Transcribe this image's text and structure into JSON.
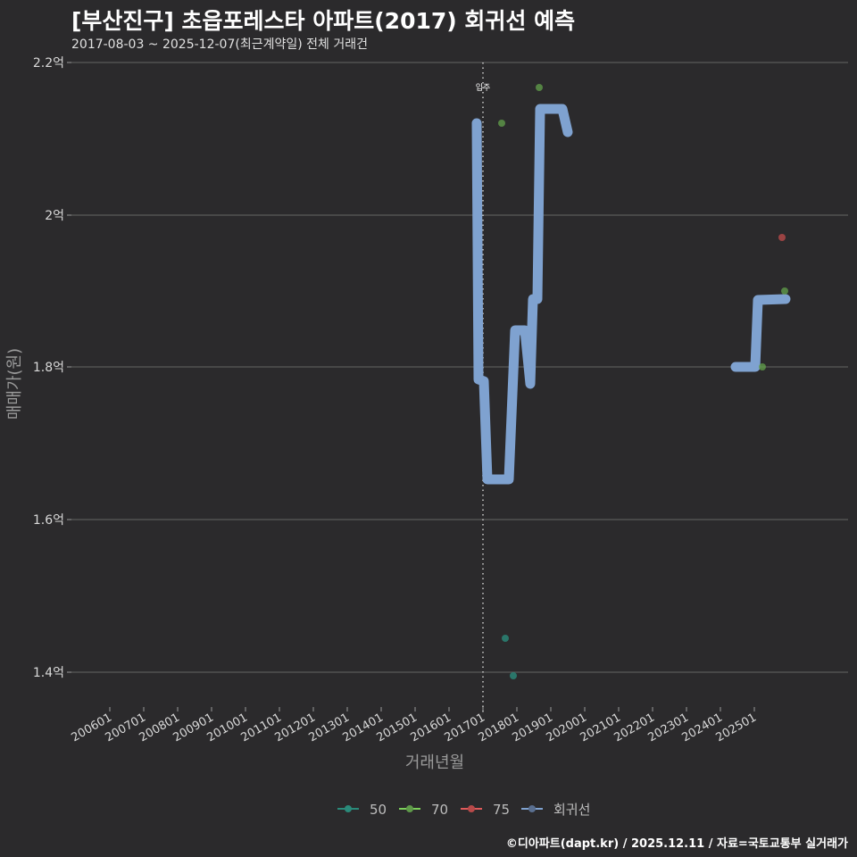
{
  "header": {
    "title": "[부산진구] 초읍포레스타 아파트(2017) 회귀선 예측",
    "subtitle": "2017-08-03 ~ 2025-12-07(최근계약일) 전체 거래건"
  },
  "caption": "©디아파트(dapt.kr) / 2025.12.11 / 자료=국토교통부 실거래가",
  "annotation": "입주",
  "chart_data": {
    "type": "line",
    "title": "[부산진구] 초읍포레스타 아파트(2017) 회귀선 예측",
    "subtitle": "2017-08-03 ~ 2025-12-07(최근계약일) 전체 거래건",
    "xlabel": "거래년월",
    "ylabel": "매매가(원)",
    "ylim": [
      1.36,
      2.2
    ],
    "y_ticks": [
      "1.4억",
      "1.6억",
      "1.8억",
      "2억",
      "2.2억"
    ],
    "x_ticks": [
      "200601",
      "200701",
      "200801",
      "200901",
      "201001",
      "201101",
      "201201",
      "201301",
      "201401",
      "201501",
      "201601",
      "201701",
      "201801",
      "201901",
      "202001",
      "202101",
      "202201",
      "202301",
      "202401",
      "202501"
    ],
    "grid": true,
    "legend_position": "bottom",
    "legend": [
      "50",
      "70",
      "75",
      "회귀선"
    ],
    "vline": {
      "x": "201701",
      "label": "입주"
    },
    "series": [
      {
        "name": "50",
        "color": "#2a8a7a",
        "type": "scatter",
        "points": [
          {
            "x": "2017-12",
            "y": 1.445
          },
          {
            "x": "2018-03",
            "y": 1.395
          }
        ]
      },
      {
        "name": "70",
        "color": "#5f9a4a",
        "type": "scatter",
        "points": [
          {
            "x": "2017-09",
            "y": 2.12
          },
          {
            "x": "2018-10",
            "y": 2.17
          },
          {
            "x": "2025-03",
            "y": 1.8
          },
          {
            "x": "2025-11",
            "y": 1.9
          }
        ]
      },
      {
        "name": "75",
        "color": "#b84a4a",
        "type": "scatter",
        "points": [
          {
            "x": "2025-10",
            "y": 1.97
          }
        ]
      },
      {
        "name": "회귀선",
        "color": "#7fa2d0",
        "type": "line",
        "points": [
          {
            "x": "2016-11",
            "y": 2.12
          },
          {
            "x": "2016-12",
            "y": 1.785
          },
          {
            "x": "2017-02",
            "y": 1.78
          },
          {
            "x": "2017-03",
            "y": 1.655
          },
          {
            "x": "2017-11",
            "y": 1.655
          },
          {
            "x": "2018-01",
            "y": 1.85
          },
          {
            "x": "2018-05",
            "y": 1.85
          },
          {
            "x": "2018-06",
            "y": 1.78
          },
          {
            "x": "2018-07",
            "y": 1.89
          },
          {
            "x": "2018-09",
            "y": 1.89
          },
          {
            "x": "2018-10",
            "y": 2.14
          },
          {
            "x": "2019-06",
            "y": 2.14
          },
          {
            "x": "2019-08",
            "y": 2.11
          },
          {
            "x": "2024-06",
            "y": 1.8
          },
          {
            "x": "2025-01",
            "y": 1.8
          },
          {
            "x": "2025-02",
            "y": 1.89
          },
          {
            "x": "2025-12",
            "y": 1.89
          }
        ]
      }
    ]
  }
}
